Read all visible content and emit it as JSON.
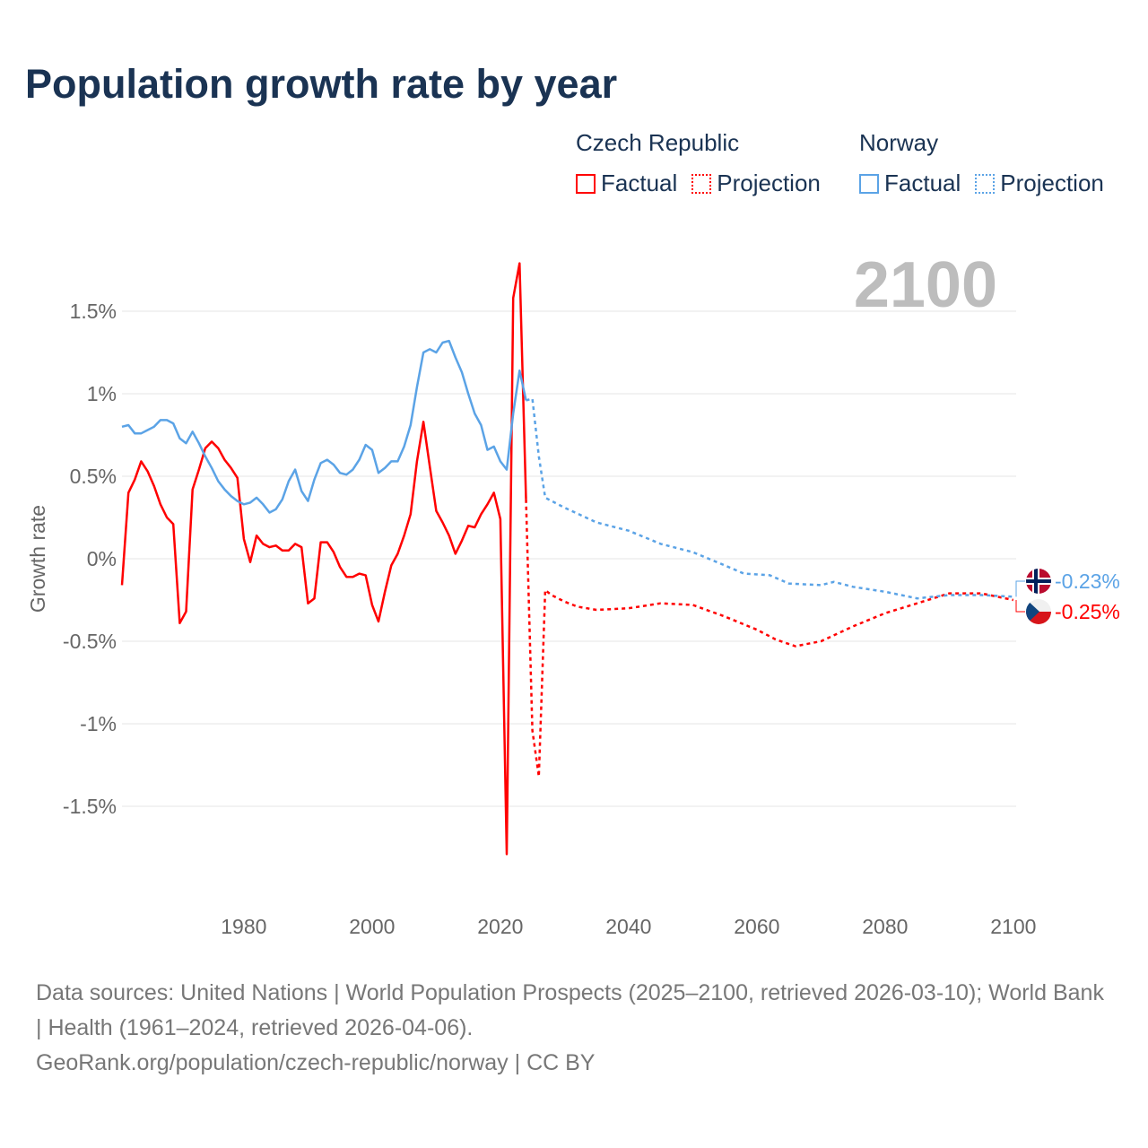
{
  "title": "Population growth rate by year",
  "legend": {
    "groups": [
      {
        "name": "Czech Republic",
        "factual": "Factual",
        "projection": "Projection",
        "color": "#ff0000"
      },
      {
        "name": "Norway",
        "factual": "Factual",
        "projection": "Projection",
        "color": "#5ba3e6"
      }
    ]
  },
  "year_label": "2100",
  "footer": {
    "sources": "Data sources: United Nations | World Population Prospects (2025–2100, retrieved 2026-03-10); World Bank | Health (1961–2024, retrieved 2026-04-06).",
    "link": "GeoRank.org/population/czech-republic/norway | CC BY"
  },
  "chart_data": {
    "type": "line",
    "title": "Population growth rate by year",
    "xlabel": "",
    "ylabel": "Growth rate",
    "xlim": [
      1961,
      2100
    ],
    "ylim": [
      -2.0,
      1.8
    ],
    "x_ticks": [
      1980,
      2000,
      2020,
      2040,
      2060,
      2080,
      2100
    ],
    "y_ticks": [
      1.5,
      1,
      0.5,
      0,
      -0.5,
      -1,
      -1.5
    ],
    "y_tick_labels": [
      "1.5%",
      "1%",
      "0.5%",
      "0%",
      "-0.5%",
      "-1%",
      "-1.5%"
    ],
    "grid": true,
    "legend_position": "top-right",
    "series": [
      {
        "name": "Czech Republic",
        "color": "#ff0000",
        "end_label": "-0.25%",
        "factual": {
          "x": [
            1961,
            1962,
            1963,
            1964,
            1965,
            1966,
            1967,
            1968,
            1969,
            1970,
            1971,
            1972,
            1973,
            1974,
            1975,
            1976,
            1977,
            1978,
            1979,
            1980,
            1981,
            1982,
            1983,
            1984,
            1985,
            1986,
            1987,
            1988,
            1989,
            1990,
            1991,
            1992,
            1993,
            1994,
            1995,
            1996,
            1997,
            1998,
            1999,
            2000,
            2001,
            2002,
            2003,
            2004,
            2005,
            2006,
            2007,
            2008,
            2009,
            2010,
            2011,
            2012,
            2013,
            2014,
            2015,
            2016,
            2017,
            2018,
            2019,
            2020,
            2021,
            2022,
            2023,
            2024
          ],
          "y": [
            -0.16,
            0.4,
            0.48,
            0.59,
            0.53,
            0.44,
            0.33,
            0.25,
            0.21,
            -0.39,
            -0.32,
            0.42,
            0.54,
            0.67,
            0.71,
            0.67,
            0.6,
            0.55,
            0.49,
            0.12,
            -0.02,
            0.14,
            0.09,
            0.07,
            0.08,
            0.05,
            0.05,
            0.09,
            0.07,
            -0.27,
            -0.24,
            0.1,
            0.1,
            0.04,
            -0.05,
            -0.11,
            -0.11,
            -0.09,
            -0.1,
            -0.28,
            -0.38,
            -0.2,
            -0.04,
            0.03,
            0.14,
            0.27,
            0.59,
            0.83,
            0.56,
            0.29,
            0.22,
            0.14,
            0.03,
            0.11,
            0.2,
            0.19,
            0.27,
            0.33,
            0.4,
            0.24,
            -1.79,
            1.58,
            1.79,
            0.36
          ]
        },
        "projection": {
          "x": [
            2024,
            2025,
            2026,
            2027,
            2028,
            2030,
            2032,
            2035,
            2040,
            2045,
            2050,
            2055,
            2060,
            2063,
            2066,
            2070,
            2075,
            2080,
            2085,
            2090,
            2095,
            2100
          ],
          "y": [
            0.36,
            -1.04,
            -1.32,
            -0.19,
            -0.22,
            -0.26,
            -0.29,
            -0.31,
            -0.3,
            -0.27,
            -0.28,
            -0.35,
            -0.43,
            -0.49,
            -0.53,
            -0.5,
            -0.41,
            -0.33,
            -0.27,
            -0.21,
            -0.21,
            -0.25
          ]
        }
      },
      {
        "name": "Norway",
        "color": "#5ba3e6",
        "end_label": "-0.23%",
        "factual": {
          "x": [
            1961,
            1962,
            1963,
            1964,
            1965,
            1966,
            1967,
            1968,
            1969,
            1970,
            1971,
            1972,
            1973,
            1974,
            1975,
            1976,
            1977,
            1978,
            1979,
            1980,
            1981,
            1982,
            1983,
            1984,
            1985,
            1986,
            1987,
            1988,
            1989,
            1990,
            1991,
            1992,
            1993,
            1994,
            1995,
            1996,
            1997,
            1998,
            1999,
            2000,
            2001,
            2002,
            2003,
            2004,
            2005,
            2006,
            2007,
            2008,
            2009,
            2010,
            2011,
            2012,
            2013,
            2014,
            2015,
            2016,
            2017,
            2018,
            2019,
            2020,
            2021,
            2022,
            2023,
            2024
          ],
          "y": [
            0.8,
            0.81,
            0.76,
            0.76,
            0.78,
            0.8,
            0.84,
            0.84,
            0.82,
            0.73,
            0.7,
            0.77,
            0.7,
            0.62,
            0.55,
            0.47,
            0.42,
            0.38,
            0.35,
            0.33,
            0.34,
            0.37,
            0.33,
            0.28,
            0.3,
            0.36,
            0.47,
            0.54,
            0.41,
            0.35,
            0.48,
            0.58,
            0.6,
            0.57,
            0.52,
            0.51,
            0.54,
            0.6,
            0.69,
            0.66,
            0.52,
            0.55,
            0.59,
            0.59,
            0.68,
            0.81,
            1.04,
            1.25,
            1.27,
            1.25,
            1.31,
            1.32,
            1.22,
            1.13,
            1.0,
            0.88,
            0.81,
            0.66,
            0.68,
            0.59,
            0.54,
            0.88,
            1.14,
            0.96
          ]
        },
        "projection": {
          "x": [
            2024,
            2025,
            2026,
            2027,
            2030,
            2035,
            2040,
            2045,
            2050,
            2055,
            2058,
            2062,
            2065,
            2070,
            2072,
            2075,
            2080,
            2085,
            2090,
            2095,
            2100
          ],
          "y": [
            0.96,
            0.97,
            0.62,
            0.37,
            0.31,
            0.22,
            0.17,
            0.09,
            0.04,
            -0.04,
            -0.09,
            -0.1,
            -0.15,
            -0.16,
            -0.14,
            -0.17,
            -0.2,
            -0.24,
            -0.22,
            -0.22,
            -0.23
          ]
        }
      }
    ]
  }
}
